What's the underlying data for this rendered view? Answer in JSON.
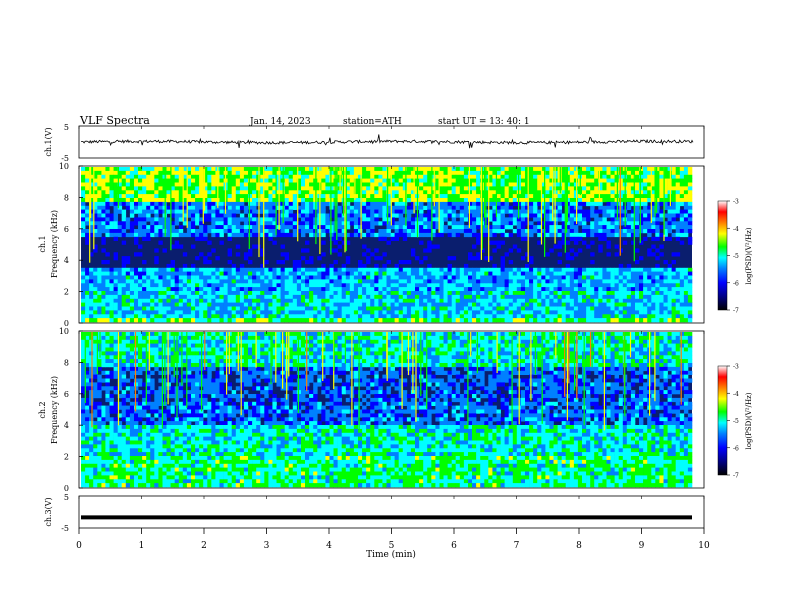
{
  "header": {
    "title": "VLF  Spectra",
    "date": "Jan. 14, 2023",
    "station": "station=ATH",
    "start": "start  UT  =    13: 40: 1"
  },
  "chart_data": [
    {
      "type": "line",
      "panel": "ch1-waveform",
      "ylabel": "ch.1(V)",
      "ylim": [
        -5,
        5
      ],
      "yticks": [
        "5",
        "-5"
      ],
      "series": [
        {
          "values_note_only": false,
          "baseline": 0,
          "color": "#000000"
        }
      ]
    },
    {
      "type": "heatmap",
      "panel": "ch1-spectrogram",
      "ylabel": "ch.1\nFrequency  (kHz)",
      "ylim": [
        0,
        10
      ],
      "yticks": [
        "0",
        "2",
        "4",
        "6",
        "8",
        "10"
      ],
      "colorbar": {
        "label": "log(PSD)(V²/Hz)",
        "ticks": [
          "-3",
          "-4",
          "-5",
          "-6",
          "-7"
        ],
        "range": [
          -7,
          -3
        ]
      }
    },
    {
      "type": "heatmap",
      "panel": "ch2-spectrogram",
      "ylabel": "ch.2\nFrequency  (kHz)",
      "ylim": [
        0,
        10
      ],
      "yticks": [
        "0",
        "2",
        "4",
        "6",
        "8",
        "10"
      ],
      "colorbar": {
        "label": "log(PSD)(V²/Hz)",
        "ticks": [
          "-3",
          "-4",
          "-5",
          "-6",
          "-7"
        ],
        "range": [
          -7,
          -3
        ]
      }
    },
    {
      "type": "line",
      "panel": "ch3-waveform",
      "ylabel": "ch.3(V)",
      "ylim": [
        -5,
        5
      ],
      "yticks": [
        "5",
        "-5"
      ],
      "series": [
        {
          "baseline": -1.7,
          "color": "#000000"
        }
      ]
    }
  ],
  "xaxis": {
    "label": "Time  (min)",
    "ticks": [
      "0",
      "1",
      "2",
      "3",
      "4",
      "5",
      "6",
      "7",
      "8",
      "9",
      "10"
    ],
    "range": [
      0,
      10
    ]
  },
  "colors": {
    "spectro_background": "#0a1e6e",
    "colormap": [
      "#000000",
      "#000080",
      "#0000ff",
      "#0080ff",
      "#00ffff",
      "#00ff00",
      "#ffff00",
      "#ff8000",
      "#ff0000",
      "#ffffff"
    ]
  }
}
